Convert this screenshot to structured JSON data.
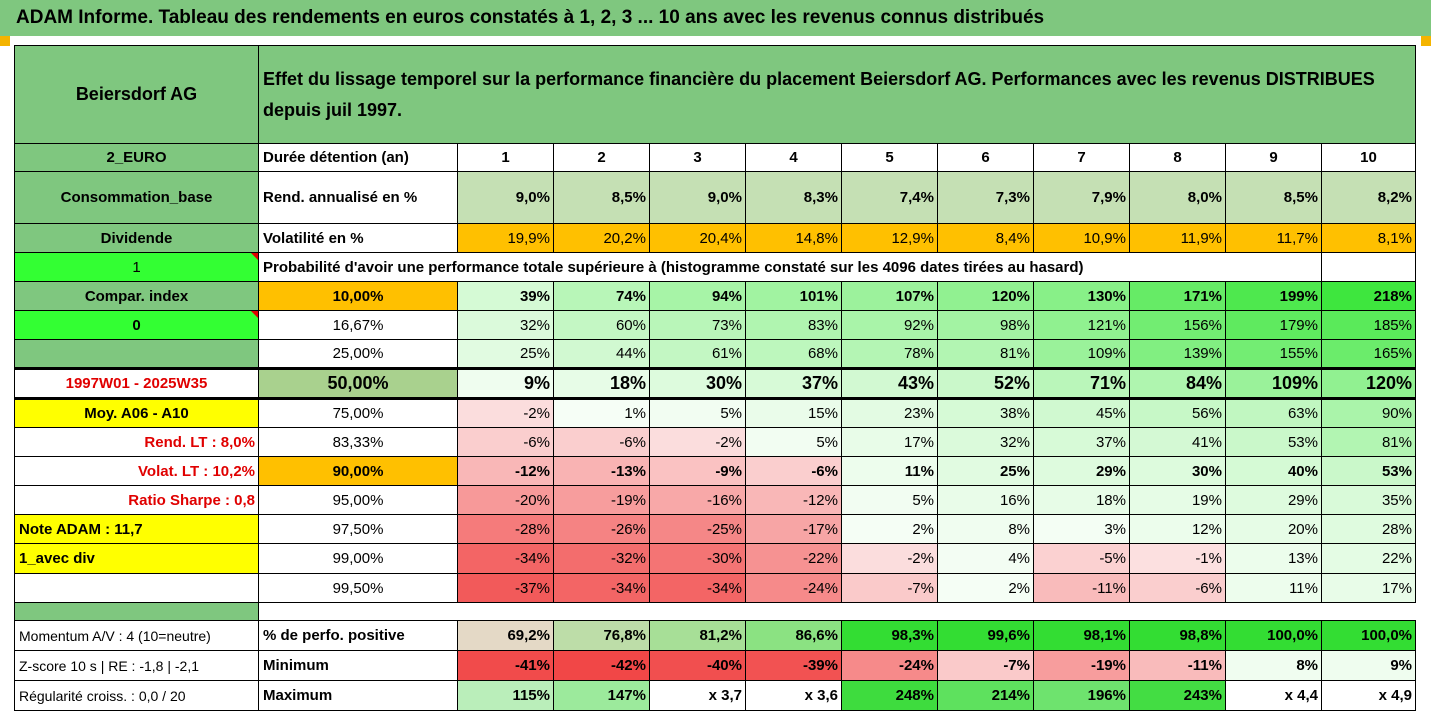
{
  "title": "ADAM Informe. Tableau des rendements en euros constatés à 1, 2, 3 ... 10 ans avec les revenus connus distribués",
  "asset_name": "Beiersdorf AG",
  "description": "Effet du lissage temporel sur la performance financière du placement Beiersdorf AG. Performances avec les revenus DISTRIBUES depuis juil 1997.",
  "side": {
    "currency": "2_EURO",
    "sector": "Consommation_base",
    "dividend": "Dividende",
    "flag1": "1",
    "compar_index": "Compar. index",
    "flag0": "0",
    "period": "1997W01 - 2025W35",
    "moy": "Moy. A06 - A10",
    "rend_lt": "Rend. LT :   8,0%",
    "volat_lt": "Volat. LT :   10,2%",
    "sharpe": "Ratio Sharpe :   0,8",
    "note": "Note ADAM : 11,7",
    "avec_div": "1_avec div",
    "momentum": "Momentum A/V : 4 (10=neutre)",
    "zscore": "Z-score 10 s  | RE : -1,8 | -2,1",
    "regularite": "Régularité croiss. : 0,0 / 20"
  },
  "header": {
    "label": "Durée détention (an)",
    "years": [
      "1",
      "2",
      "3",
      "4",
      "5",
      "6",
      "7",
      "8",
      "9",
      "10"
    ]
  },
  "rend": {
    "label": "Rend. annualisé en %",
    "values": [
      "9,0%",
      "8,5%",
      "9,0%",
      "8,3%",
      "7,4%",
      "7,3%",
      "7,9%",
      "8,0%",
      "8,5%",
      "8,2%"
    ]
  },
  "vol": {
    "label": "Volatilité en %",
    "values": [
      "19,9%",
      "20,2%",
      "20,4%",
      "14,8%",
      "12,9%",
      "8,4%",
      "10,9%",
      "11,9%",
      "11,7%",
      "8,1%"
    ]
  },
  "prob_caption": "Probabilité d'avoir une performance totale supérieure à (histogramme constaté sur les 4096 dates tirées au hasard)",
  "quantiles": [
    {
      "p": "10,00%",
      "values": [
        "39%",
        "74%",
        "94%",
        "101%",
        "107%",
        "120%",
        "130%",
        "171%",
        "199%",
        "218%"
      ]
    },
    {
      "p": "16,67%",
      "values": [
        "32%",
        "60%",
        "73%",
        "83%",
        "92%",
        "98%",
        "121%",
        "156%",
        "179%",
        "185%"
      ]
    },
    {
      "p": "25,00%",
      "values": [
        "25%",
        "44%",
        "61%",
        "68%",
        "78%",
        "81%",
        "109%",
        "139%",
        "155%",
        "165%"
      ]
    },
    {
      "p": "50,00%",
      "values": [
        "9%",
        "18%",
        "30%",
        "37%",
        "43%",
        "52%",
        "71%",
        "84%",
        "109%",
        "120%"
      ]
    },
    {
      "p": "75,00%",
      "values": [
        "-2%",
        "1%",
        "5%",
        "15%",
        "23%",
        "38%",
        "45%",
        "56%",
        "63%",
        "90%"
      ]
    },
    {
      "p": "83,33%",
      "values": [
        "-6%",
        "-6%",
        "-2%",
        "5%",
        "17%",
        "32%",
        "37%",
        "41%",
        "53%",
        "81%"
      ]
    },
    {
      "p": "90,00%",
      "values": [
        "-12%",
        "-13%",
        "-9%",
        "-6%",
        "11%",
        "25%",
        "29%",
        "30%",
        "40%",
        "53%"
      ]
    },
    {
      "p": "95,00%",
      "values": [
        "-20%",
        "-19%",
        "-16%",
        "-12%",
        "5%",
        "16%",
        "18%",
        "19%",
        "29%",
        "35%"
      ]
    },
    {
      "p": "97,50%",
      "values": [
        "-28%",
        "-26%",
        "-25%",
        "-17%",
        "2%",
        "8%",
        "3%",
        "12%",
        "20%",
        "28%"
      ]
    },
    {
      "p": "99,00%",
      "values": [
        "-34%",
        "-32%",
        "-30%",
        "-22%",
        "-2%",
        "4%",
        "-5%",
        "-1%",
        "13%",
        "22%"
      ]
    },
    {
      "p": "99,50%",
      "values": [
        "-37%",
        "-34%",
        "-34%",
        "-24%",
        "-7%",
        "2%",
        "-11%",
        "-6%",
        "11%",
        "17%"
      ]
    }
  ],
  "positive": {
    "label": "% de perfo. positive",
    "values": [
      "69,2%",
      "76,8%",
      "81,2%",
      "86,6%",
      "98,3%",
      "99,6%",
      "98,1%",
      "98,8%",
      "100,0%",
      "100,0%"
    ]
  },
  "minimum": {
    "label": "Minimum",
    "values": [
      "-41%",
      "-42%",
      "-40%",
      "-39%",
      "-24%",
      "-7%",
      "-19%",
      "-11%",
      "8%",
      "9%"
    ]
  },
  "maximum": {
    "label": "Maximum",
    "values": [
      "115%",
      "147%",
      "x 3,7",
      "x 3,6",
      "248%",
      "214%",
      "196%",
      "243%",
      "x 4,4",
      "x 4,9"
    ]
  },
  "colors": {
    "header_green": "#7fc77f",
    "light_green": "#c5e0b4",
    "orange": "#ffc000",
    "lime": "#33ff33",
    "yellow": "#ffff00",
    "red_text": "#e00000"
  }
}
